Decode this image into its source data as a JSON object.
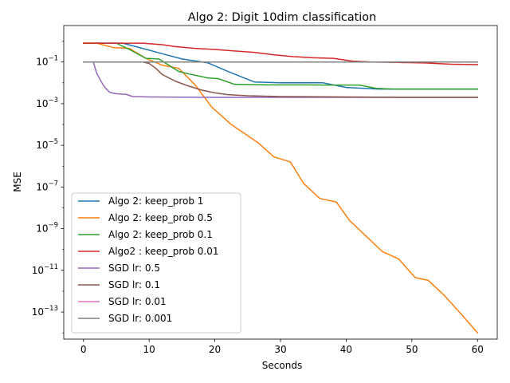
{
  "chart_data": {
    "type": "line",
    "title": "Algo 2: Digit 10dim classification",
    "xlabel": "Seconds",
    "ylabel": "MSE",
    "xlim": [
      -3,
      63
    ],
    "ylim_exp": [
      -14.3,
      0.75
    ],
    "y_scale": "log",
    "grid": false,
    "legend_position": "lower-left",
    "x_ticks": [
      0,
      10,
      20,
      30,
      40,
      50,
      60
    ],
    "x_tick_labels": [
      "0",
      "10",
      "20",
      "30",
      "40",
      "50",
      "60"
    ],
    "y_ticks_exp": [
      -13,
      -11,
      -9,
      -7,
      -5,
      -3,
      -1
    ],
    "y_tick_labels": [
      {
        "base": "10",
        "exp": "−13"
      },
      {
        "base": "10",
        "exp": "−11"
      },
      {
        "base": "10",
        "exp": "−9"
      },
      {
        "base": "10",
        "exp": "−7"
      },
      {
        "base": "10",
        "exp": "−5"
      },
      {
        "base": "10",
        "exp": "−3"
      },
      {
        "base": "10",
        "exp": "−1"
      }
    ],
    "series": [
      {
        "name": "Algo 2: keep_prob 1",
        "color": "#1f77b4",
        "x": [
          0,
          3,
          6,
          9,
          12,
          15,
          19,
          22,
          26,
          30,
          36.5,
          40,
          45,
          50,
          55,
          60
        ],
        "y": [
          0.8,
          0.8,
          0.8,
          0.45,
          0.25,
          0.14,
          0.09,
          0.035,
          0.011,
          0.01,
          0.01,
          0.006,
          0.005,
          0.005,
          0.005,
          0.005
        ]
      },
      {
        "name": "Algo 2: keep_prob 0.5",
        "color": "#ff7f0e",
        "x": [
          0,
          2,
          4.5,
          7,
          9.5,
          12,
          14.5,
          17,
          19.5,
          22.5,
          26.5,
          29,
          31.5,
          33.5,
          36,
          38.5,
          40.5,
          43,
          45.5,
          48,
          50.5,
          52.5,
          55,
          57.5,
          60
        ],
        "y": [
          0.8,
          0.8,
          0.5,
          0.45,
          0.15,
          0.07,
          0.05,
          0.008,
          0.0007,
          0.0001,
          1.4e-05,
          2.8e-06,
          1.6e-06,
          1.5e-07,
          2.8e-08,
          1.9e-08,
          2.5e-09,
          4.5e-10,
          8e-11,
          3.5e-11,
          4.5e-12,
          3.3e-12,
          6e-13,
          8e-14,
          1e-14
        ]
      },
      {
        "name": "Algo 2: keep_prob 0.1",
        "color": "#2ca02c",
        "x": [
          0,
          3,
          5,
          7,
          9.5,
          11.5,
          13,
          14.5,
          16.5,
          19,
          20.5,
          23,
          28,
          33,
          38,
          42,
          44.5,
          47,
          60
        ],
        "y": [
          0.8,
          0.8,
          0.8,
          0.4,
          0.15,
          0.14,
          0.07,
          0.035,
          0.025,
          0.017,
          0.016,
          0.0085,
          0.008,
          0.008,
          0.0078,
          0.0078,
          0.0055,
          0.005,
          0.005
        ]
      },
      {
        "name": "Algo2 : keep_prob 0.01",
        "color": "#d62728",
        "x": [
          0,
          4,
          9,
          12,
          14,
          17,
          20,
          23,
          26,
          29,
          32,
          35,
          38,
          41,
          44,
          48,
          52,
          56,
          60
        ],
        "y": [
          0.8,
          0.8,
          0.8,
          0.68,
          0.55,
          0.45,
          0.4,
          0.34,
          0.29,
          0.22,
          0.18,
          0.16,
          0.15,
          0.11,
          0.1,
          0.095,
          0.09,
          0.078,
          0.075
        ]
      },
      {
        "name": "SGD lr: 0.5",
        "color": "#9467bd",
        "x": [
          0,
          1.5,
          2,
          2.5,
          3,
          3.5,
          4,
          5,
          6.5,
          7.5,
          10,
          20,
          40,
          60
        ],
        "y": [
          0.1,
          0.1,
          0.03,
          0.015,
          0.008,
          0.005,
          0.0035,
          0.003,
          0.0028,
          0.0022,
          0.0021,
          0.002,
          0.002,
          0.002
        ]
      },
      {
        "name": "SGD lr: 0.1",
        "color": "#8c564b",
        "x": [
          0,
          9,
          10,
          11,
          12,
          14,
          16,
          18,
          20,
          22,
          25,
          30,
          40,
          50,
          60
        ],
        "y": [
          0.1,
          0.1,
          0.085,
          0.05,
          0.025,
          0.012,
          0.007,
          0.0045,
          0.0033,
          0.0027,
          0.0024,
          0.0022,
          0.0021,
          0.002,
          0.002
        ]
      },
      {
        "name": "SGD lr: 0.01",
        "color": "#e377c2",
        "x": [
          0,
          60
        ],
        "y": [
          0.1,
          0.1
        ]
      },
      {
        "name": "SGD lr: 0.001",
        "color": "#7f7f7f",
        "x": [
          0,
          60
        ],
        "y": [
          0.1,
          0.1
        ]
      }
    ]
  }
}
